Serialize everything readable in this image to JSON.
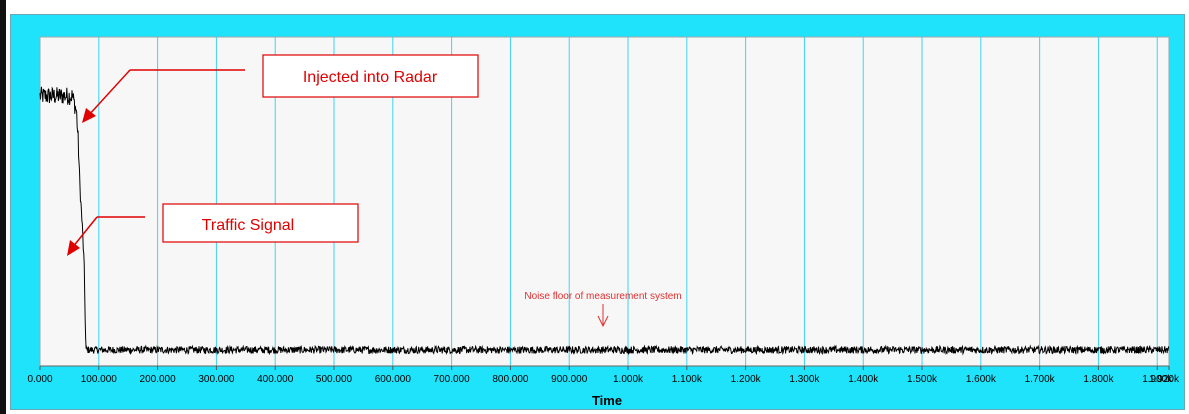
{
  "chart_data": {
    "type": "line",
    "title": "",
    "xlabel": "Time",
    "ylabel": "",
    "xlim": [
      0,
      1920
    ],
    "x_ticks": [
      0,
      100,
      200,
      300,
      400,
      500,
      600,
      700,
      800,
      900,
      1000,
      1100,
      1200,
      1300,
      1400,
      1500,
      1600,
      1700,
      1800,
      1900,
      1920
    ],
    "x_tick_labels": [
      "0.000",
      "100.000",
      "200.000",
      "300.000",
      "400.000",
      "500.000",
      "600.000",
      "700.000",
      "800.000",
      "900.000",
      "1.000k",
      "1.100k",
      "1.200k",
      "1.300k",
      "1.400k",
      "1.500k",
      "1.600k",
      "1.700k",
      "1.800k",
      "1.900k",
      "1.920k"
    ],
    "grid": "vertical",
    "y_tick_labels": [],
    "series": [
      {
        "color": "#000000",
        "points": [
          [
            0,
            0.85
          ],
          [
            55,
            0.85
          ],
          [
            62,
            0.8
          ],
          [
            65,
            0.7
          ],
          [
            68,
            0.55
          ],
          [
            72,
            0.42
          ],
          [
            75,
            0.3
          ],
          [
            78,
            0.02
          ],
          [
            1920,
            0.02
          ]
        ]
      }
    ],
    "annotations": [
      {
        "label": "Injected into Radar"
      },
      {
        "label": "Traffic Signal"
      },
      {
        "label": "Noise floor of measurement system"
      }
    ]
  },
  "colors": {
    "frame": "#1fe3fb",
    "plot_bg": "#f7f7f7",
    "grid": "#3fd4f0",
    "signal": "#000000",
    "annotation": "#e00000"
  }
}
